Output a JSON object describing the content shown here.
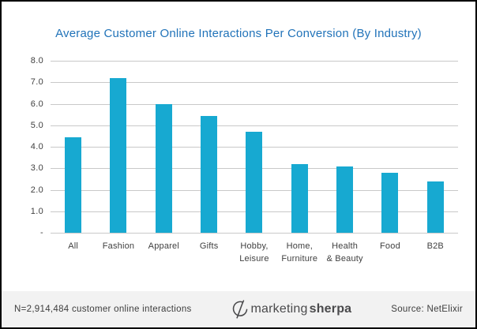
{
  "chart_data": {
    "type": "bar",
    "title": "Average Customer Online Interactions Per Conversion (By Industry)",
    "categories": [
      "All",
      "Fashion",
      "Apparel",
      "Gifts",
      "Hobby,\nLeisure",
      "Home,\nFurniture",
      "Health\n& Beauty",
      "Food",
      "B2B"
    ],
    "values": [
      4.45,
      7.2,
      6.0,
      5.45,
      4.7,
      3.2,
      3.1,
      2.8,
      2.4
    ],
    "xlabel": "",
    "ylabel": "",
    "ylim": [
      0,
      8
    ],
    "yticks": [
      {
        "value": 8,
        "label": "8.0"
      },
      {
        "value": 7,
        "label": "7.0"
      },
      {
        "value": 6,
        "label": "6.0"
      },
      {
        "value": 5,
        "label": "5.0"
      },
      {
        "value": 4,
        "label": "4.0"
      },
      {
        "value": 3,
        "label": "3.0"
      },
      {
        "value": 2,
        "label": "2.0"
      },
      {
        "value": 1,
        "label": "1.0"
      },
      {
        "value": 0,
        "label": "-"
      }
    ],
    "grid": true,
    "legend": false
  },
  "footer": {
    "sample_note": "N=2,914,484 customer online interactions",
    "logo_text_light": "marketing",
    "logo_text_bold": "sherpa",
    "logo_icon": "marketingsherpa-swoosh-icon",
    "source": "Source: NetElixir"
  },
  "colors": {
    "title": "#2173B9",
    "bar": "#17A9D1",
    "gridline": "#C9C9C9",
    "axis_label": "#3F3F3F",
    "footer_bg": "#F2F2F2",
    "logo": "#4A4A4C",
    "border": "#000000"
  }
}
